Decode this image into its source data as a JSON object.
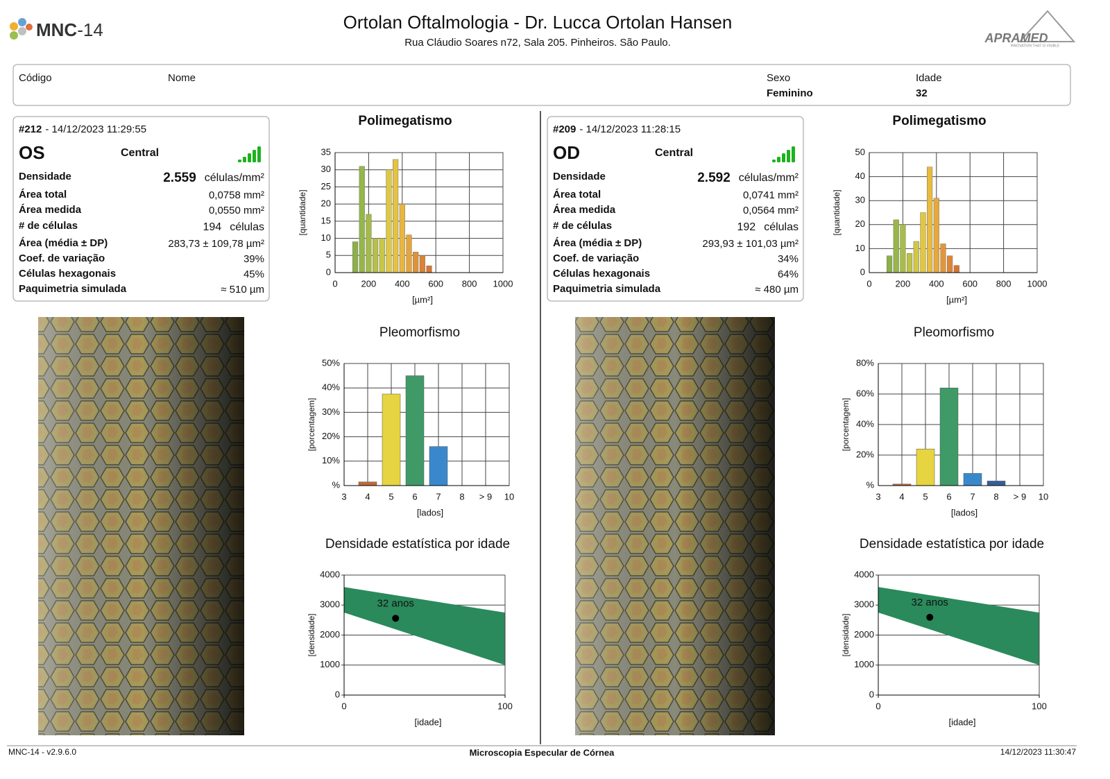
{
  "header": {
    "logo": "MNC",
    "logo_suffix": "-14",
    "title": "Ortolan Oftalmologia - Dr. Lucca Ortolan Hansen",
    "address": "Rua Cláudio Soares n72, Sala 205. Pinheiros. São Paulo.",
    "brand": "APRAMED",
    "brand_tagline": "INNOVATION THAT IS VISIBLE"
  },
  "patient": {
    "code_label": "Código",
    "name_label": "Nome",
    "sex_label": "Sexo",
    "sex": "Feminino",
    "age_label": "Idade",
    "age": "32"
  },
  "exams": [
    {
      "number": "#212",
      "datetime": "- 14/12/2023 11:29:55",
      "eye": "OS",
      "region": "Central",
      "stats": [
        {
          "label": "Densidade",
          "value": "2.559",
          "unit": "células/mm²"
        },
        {
          "label": "Área total",
          "value": "0,0758 mm²"
        },
        {
          "label": "Área medida",
          "value": "0,0550 mm²"
        },
        {
          "label": "# de células",
          "value": "194",
          "unit": "células"
        },
        {
          "label": "Área (média ± DP)",
          "value": "283,73 ± 109,78 µm²"
        },
        {
          "label": "Coef. de variação",
          "value": "39%"
        },
        {
          "label": "Células hexagonais",
          "value": "45%"
        },
        {
          "label": "Paquimetria simulada",
          "value": "≈ 510 µm"
        }
      ],
      "polimegatismo": {
        "type": "histogram",
        "title": "Polimegatismo",
        "bins": [
          100,
          140,
          180,
          220,
          260,
          300,
          340,
          380,
          420,
          460,
          500,
          540,
          580
        ],
        "values": [
          9,
          31,
          17,
          10,
          10,
          30,
          33,
          20,
          11,
          6,
          5,
          2
        ],
        "colors": [
          "#8cb04a",
          "#95b64a",
          "#a3bb48",
          "#b5c046",
          "#c8c645",
          "#dcc843",
          "#e5c242",
          "#e8b640",
          "#e5a43c",
          "#e09238",
          "#dc8234",
          "#d87432"
        ],
        "xlim": [
          0,
          1000
        ],
        "xticks": [
          0,
          200,
          400,
          600,
          800,
          1000
        ],
        "ylim": [
          0,
          35
        ],
        "yticks": [
          0,
          5,
          10,
          15,
          20,
          25,
          30,
          35
        ],
        "xlabel": "[µm²]",
        "ylabel": "[quantidade]"
      },
      "pleomorfismo": {
        "type": "bar",
        "title": "Pleomorfismo",
        "categories": [
          "3",
          "4",
          "5",
          "6",
          "7",
          "8",
          "> 9",
          "10"
        ],
        "values": [
          null,
          1.5,
          37.5,
          45,
          16,
          null,
          null,
          null
        ],
        "colors": [
          null,
          "#c0683a",
          "#e6d440",
          "#3f9a67",
          "#3a88cc",
          null,
          null,
          null
        ],
        "ylim": [
          0,
          50
        ],
        "yticks": [
          {
            "value": 0,
            "label": "%"
          },
          {
            "value": 10,
            "label": "10%"
          },
          {
            "value": 20,
            "label": "20%"
          },
          {
            "value": 30,
            "label": "30%"
          },
          {
            "value": 40,
            "label": "40%"
          },
          {
            "value": 50,
            "label": "50%"
          }
        ],
        "xlabel": "[lados]",
        "ylabel": "[porcentagem]"
      },
      "densidade": {
        "type": "band",
        "title": "Densidade estatística por idade",
        "x": [
          0,
          100
        ],
        "upper": [
          3600,
          2750
        ],
        "lower": [
          2750,
          1000
        ],
        "color": "#2a8a5c",
        "point": {
          "x": 32,
          "y": 2559,
          "label": "32 anos"
        },
        "xlim": [
          0,
          100
        ],
        "xticks": [
          0,
          100
        ],
        "ylim": [
          0,
          4000
        ],
        "yticks": [
          0,
          1000,
          2000,
          3000,
          4000
        ],
        "xlabel": "[idade]",
        "ylabel": "[densidade]"
      }
    },
    {
      "number": "#209",
      "datetime": "- 14/12/2023 11:28:15",
      "eye": "OD",
      "region": "Central",
      "stats": [
        {
          "label": "Densidade",
          "value": "2.592",
          "unit": "células/mm²"
        },
        {
          "label": "Área total",
          "value": "0,0741 mm²"
        },
        {
          "label": "Área medida",
          "value": "0,0564 mm²"
        },
        {
          "label": "# de células",
          "value": "192",
          "unit": "células"
        },
        {
          "label": "Área (média ± DP)",
          "value": "293,93 ± 101,03 µm²"
        },
        {
          "label": "Coef. de variação",
          "value": "34%"
        },
        {
          "label": "Células hexagonais",
          "value": "64%"
        },
        {
          "label": "Paquimetria simulada",
          "value": "≈ 480 µm"
        }
      ],
      "polimegatismo": {
        "type": "histogram",
        "title": "Polimegatismo",
        "bins": [
          100,
          140,
          180,
          220,
          260,
          300,
          340,
          380,
          420,
          460,
          500,
          540
        ],
        "values": [
          7,
          22,
          20,
          8,
          13,
          25,
          44,
          31,
          12,
          7,
          3
        ],
        "colors": [
          "#8cb04a",
          "#97b74a",
          "#a8bd48",
          "#bcc246",
          "#d2c744",
          "#e2c642",
          "#e8ba40",
          "#e6a83d",
          "#e29639",
          "#dd8535",
          "#d87432"
        ],
        "xlim": [
          0,
          1000
        ],
        "xticks": [
          0,
          200,
          400,
          600,
          800,
          1000
        ],
        "ylim": [
          0,
          50
        ],
        "yticks": [
          0,
          10,
          20,
          30,
          40,
          50
        ],
        "xlabel": "[µm²]",
        "ylabel": "[quantidade]"
      },
      "pleomorfismo": {
        "type": "bar",
        "title": "Pleomorfismo",
        "categories": [
          "3",
          "4",
          "5",
          "6",
          "7",
          "8",
          "> 9",
          "10"
        ],
        "values": [
          null,
          1,
          24,
          64,
          8,
          3,
          null,
          null
        ],
        "colors": [
          null,
          "#c0683a",
          "#e6d440",
          "#3f9a67",
          "#3a88cc",
          "#34609a",
          null,
          null
        ],
        "ylim": [
          0,
          80
        ],
        "yticks": [
          {
            "value": 0,
            "label": "%"
          },
          {
            "value": 20,
            "label": "20%"
          },
          {
            "value": 40,
            "label": "40%"
          },
          {
            "value": 60,
            "label": "60%"
          },
          {
            "value": 80,
            "label": "80%"
          }
        ],
        "xlabel": "[lados]",
        "ylabel": "[porcentagem]"
      },
      "densidade": {
        "type": "band",
        "title": "Densidade estatística por idade",
        "x": [
          0,
          100
        ],
        "upper": [
          3600,
          2750
        ],
        "lower": [
          2750,
          1000
        ],
        "color": "#2a8a5c",
        "point": {
          "x": 32,
          "y": 2592,
          "label": "32 anos"
        },
        "xlim": [
          0,
          100
        ],
        "xticks": [
          0,
          100
        ],
        "ylim": [
          0,
          4000
        ],
        "yticks": [
          0,
          1000,
          2000,
          3000,
          4000
        ],
        "xlabel": "[idade]",
        "ylabel": "[densidade]"
      }
    }
  ],
  "footer": {
    "version": "MNC-14 - v2.9.6.0",
    "title": "Microscopia Especular de Córnea",
    "datetime": "14/12/2023 11:30:47"
  }
}
